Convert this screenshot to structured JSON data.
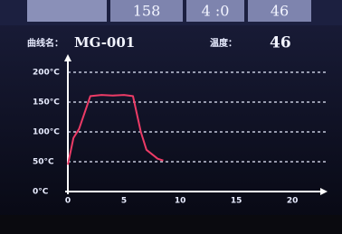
{
  "header": {
    "cells": [
      "158",
      "4 :0",
      "46"
    ],
    "name_label": "曲线名：",
    "name_value": "MG-001",
    "temp_label": "温度：",
    "temp_value": "46"
  },
  "chart_data": {
    "type": "line",
    "x": [
      0,
      0.5,
      1,
      2,
      3,
      4,
      5,
      5.8,
      6.5,
      7,
      8,
      8.5
    ],
    "series": [
      {
        "color": "#ec3b66",
        "values": [
          45,
          90,
          105,
          160,
          162,
          161,
          162,
          160,
          100,
          70,
          55,
          52
        ]
      }
    ],
    "xlim": [
      0,
      22
    ],
    "xticks": [
      0,
      5,
      10,
      15,
      20
    ],
    "ylim": [
      0,
      200
    ],
    "yticks": [
      {
        "value": 0,
        "label": "0°C"
      },
      {
        "value": 50,
        "label": "50°C"
      },
      {
        "value": 100,
        "label": "100°C"
      },
      {
        "value": 150,
        "label": "150°C"
      },
      {
        "value": 200,
        "label": "200°C"
      }
    ],
    "grid": true
  }
}
